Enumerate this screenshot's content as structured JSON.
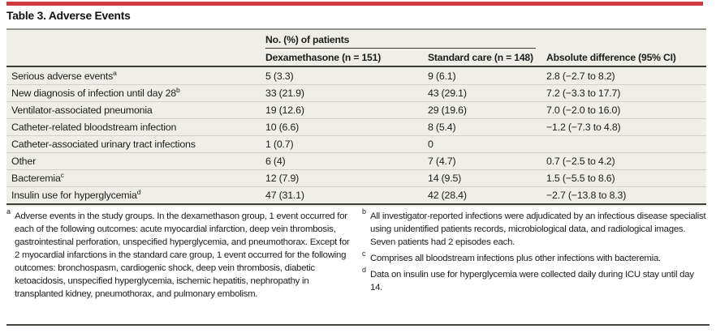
{
  "title": "Table 3. Adverse Events",
  "colors": {
    "accent_bar": "#d03b41",
    "table_background": "#f0efe7",
    "row_separator": "#d3d2c9",
    "heavy_rule": "#3d3d39",
    "title_rule": "#95948c",
    "text": "#1c1c1c"
  },
  "table": {
    "spanner": "No. (%) of patients",
    "columns": [
      "",
      "Dexamethasone (n = 151)",
      "Standard care (n = 148)",
      "Absolute difference (95% CI)"
    ],
    "rows": [
      {
        "label": "Serious adverse events",
        "sup": "a",
        "dex": "5 (3.3)",
        "std": "9 (6.1)",
        "diff": "2.8 (−2.7 to 8.2)"
      },
      {
        "label": "New diagnosis of infection until day 28",
        "sup": "b",
        "dex": "33 (21.9)",
        "std": "43 (29.1)",
        "diff": "7.2 (−3.3 to 17.7)"
      },
      {
        "label": "Ventilator-associated pneumonia",
        "sup": "",
        "dex": "19 (12.6)",
        "std": "29 (19.6)",
        "diff": "7.0 (−2.0 to 16.0)"
      },
      {
        "label": "Catheter-related bloodstream infection",
        "sup": "",
        "dex": "10 (6.6)",
        "std": "8 (5.4)",
        "diff": "−1.2 (−7.3 to 4.8)"
      },
      {
        "label": "Catheter-associated urinary tract infections",
        "sup": "",
        "dex": "1 (0.7)",
        "std": "0",
        "diff": ""
      },
      {
        "label": "Other",
        "sup": "",
        "dex": "6 (4)",
        "std": "7 (4.7)",
        "diff": "0.7 (−2.5 to 4.2)"
      },
      {
        "label": "Bacteremia",
        "sup": "c",
        "dex": "12 (7.9)",
        "std": "14 (9.5)",
        "diff": "1.5 (−5.5 to 8.6)"
      },
      {
        "label": "Insulin use for hyperglycemia",
        "sup": "d",
        "dex": "47 (31.1)",
        "std": "42 (28.4)",
        "diff": "−2.7 (−13.8 to 8.3)"
      }
    ]
  },
  "footnotes": {
    "left": [
      {
        "marker": "a",
        "text": "Adverse events in the study groups. In the dexamethason group, 1 event occurred for each of the following outcomes: acute myocardial infarction, deep vein thrombosis, gastrointestinal perforation, unspecified hyperglycemia, and pneumothorax. Except for 2 myocardial infarctions in the standard care group, 1 event occurred for the following outcomes: bronchospasm, cardiogenic shock, deep vein thrombosis, diabetic ketoacidosis, unspecified hyperglycemia, ischemic hepatitis, nephropathy in transplanted kidney, pneumothorax, and pulmonary embolism."
      }
    ],
    "right": [
      {
        "marker": "b",
        "text": "All investigator-reported infections were adjudicated by an infectious disease specialist using unidentified patients records, microbiological data, and radiological images. Seven patients had 2 episodes each."
      },
      {
        "marker": "c",
        "text": "Comprises all bloodstream infections plus other infections with bacteremia."
      },
      {
        "marker": "d",
        "text": "Data on insulin use for hyperglycemia were collected daily during ICU stay until day 14."
      }
    ]
  }
}
